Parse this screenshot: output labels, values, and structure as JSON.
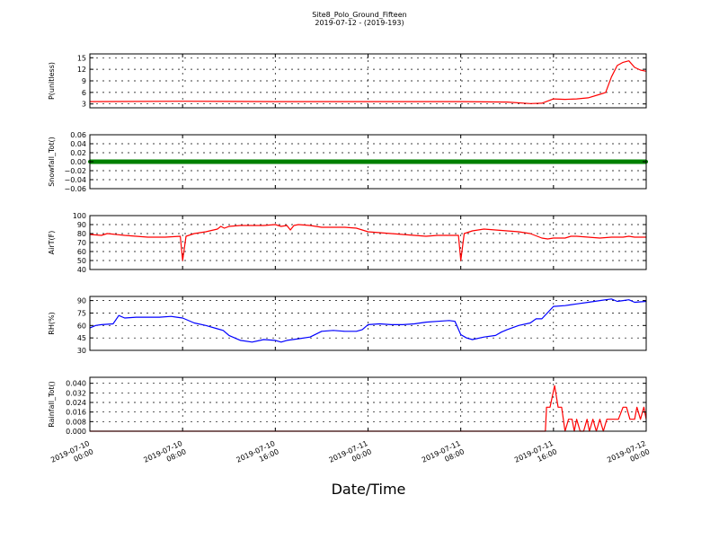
{
  "figure": {
    "title": "Site8_Polo_Ground_Fifteen",
    "subtitle": "2019-07-12 - (2019-193)",
    "xlabel": "Date/Time"
  },
  "chart_data": {
    "type": "line",
    "x_ticks": [
      [
        "2019-07-10",
        "00:00"
      ],
      [
        "2019-07-10",
        "08:00"
      ],
      [
        "2019-07-10",
        "16:00"
      ],
      [
        "2019-07-11",
        "00:00"
      ],
      [
        "2019-07-11",
        "08:00"
      ],
      [
        "2019-07-11",
        "16:00"
      ],
      [
        "2019-07-12",
        "00:00"
      ]
    ],
    "x_range_hours": [
      0,
      48
    ],
    "grid": true,
    "panels": [
      {
        "ylabel": "P(unitless)",
        "ylim": [
          2,
          16
        ],
        "yticks": [
          "3",
          "6",
          "9",
          "12",
          "15"
        ],
        "ytick_values": [
          3,
          6,
          9,
          12,
          15
        ],
        "color": "#ff0000",
        "series": [
          [
            0,
            3.6
          ],
          [
            8,
            3.7
          ],
          [
            16,
            3.6
          ],
          [
            24,
            3.6
          ],
          [
            32,
            3.6
          ],
          [
            36,
            3.5
          ],
          [
            38,
            3.1
          ],
          [
            39,
            3.2
          ],
          [
            40,
            4.3
          ],
          [
            41,
            4.2
          ],
          [
            42,
            4.3
          ],
          [
            43,
            4.6
          ],
          [
            44,
            5.5
          ],
          [
            44.5,
            6
          ],
          [
            45,
            10
          ],
          [
            45.5,
            13
          ],
          [
            46,
            13.8
          ],
          [
            46.5,
            14.2
          ],
          [
            47,
            12.5
          ],
          [
            47.5,
            11.8
          ],
          [
            48,
            11.5
          ]
        ]
      },
      {
        "ylabel": "Snowfall_Tot()",
        "ylim": [
          -0.06,
          0.06
        ],
        "yticks": [
          "−0.06",
          "−0.04",
          "−0.02",
          "0.00",
          "0.02",
          "0.04",
          "0.06"
        ],
        "ytick_values": [
          -0.06,
          -0.04,
          -0.02,
          0,
          0.02,
          0.04,
          0.06
        ],
        "color": "#008000",
        "marker": "dot",
        "series": [
          [
            0,
            0
          ],
          [
            48,
            0
          ]
        ]
      },
      {
        "ylabel": "AirT(F)",
        "ylim": [
          40,
          100
        ],
        "yticks": [
          "40",
          "50",
          "60",
          "70",
          "80",
          "90",
          "100"
        ],
        "ytick_values": [
          40,
          50,
          60,
          70,
          80,
          90,
          100
        ],
        "color": "#ff0000",
        "series": [
          [
            0,
            79
          ],
          [
            1,
            78
          ],
          [
            1.5,
            80
          ],
          [
            3,
            78
          ],
          [
            5,
            76
          ],
          [
            6.5,
            76
          ],
          [
            7.8,
            77
          ],
          [
            8,
            50
          ],
          [
            8.3,
            77
          ],
          [
            9,
            80
          ],
          [
            10,
            82
          ],
          [
            11,
            85
          ],
          [
            11.3,
            88
          ],
          [
            11.6,
            86
          ],
          [
            12,
            88
          ],
          [
            13,
            89
          ],
          [
            14,
            89
          ],
          [
            15,
            89
          ],
          [
            16,
            90
          ],
          [
            16.5,
            88
          ],
          [
            17,
            89
          ],
          [
            17.3,
            84
          ],
          [
            17.6,
            89
          ],
          [
            18,
            90
          ],
          [
            19,
            89
          ],
          [
            20,
            87
          ],
          [
            21,
            87
          ],
          [
            22,
            87
          ],
          [
            23,
            86
          ],
          [
            23.5,
            84
          ],
          [
            24,
            82
          ],
          [
            25,
            81
          ],
          [
            26,
            80
          ],
          [
            27,
            79
          ],
          [
            28,
            78
          ],
          [
            29,
            77
          ],
          [
            30,
            78
          ],
          [
            31.8,
            78
          ],
          [
            32,
            50
          ],
          [
            32.3,
            80
          ],
          [
            33,
            83
          ],
          [
            33.5,
            84
          ],
          [
            34,
            85
          ],
          [
            35,
            84
          ],
          [
            36,
            83
          ],
          [
            37,
            82
          ],
          [
            38,
            80
          ],
          [
            39,
            75
          ],
          [
            39.5,
            74
          ],
          [
            40,
            75
          ],
          [
            41,
            75
          ],
          [
            41.5,
            77
          ],
          [
            42,
            77
          ],
          [
            43,
            76
          ],
          [
            44,
            75
          ],
          [
            45,
            76
          ],
          [
            46,
            76
          ],
          [
            46.5,
            77
          ],
          [
            47,
            76
          ],
          [
            48,
            76
          ]
        ]
      },
      {
        "ylabel": "RH(%)",
        "ylim": [
          30,
          95
        ],
        "yticks": [
          "30",
          "45",
          "60",
          "75",
          "90"
        ],
        "ytick_values": [
          30,
          45,
          60,
          75,
          90
        ],
        "color": "#0000ff",
        "series": [
          [
            0,
            57
          ],
          [
            0.5,
            60
          ],
          [
            1,
            61
          ],
          [
            2,
            62
          ],
          [
            2.5,
            72
          ],
          [
            3,
            69
          ],
          [
            4,
            70
          ],
          [
            5,
            70
          ],
          [
            6,
            70
          ],
          [
            7,
            71
          ],
          [
            7.5,
            70
          ],
          [
            8,
            69
          ],
          [
            9,
            63
          ],
          [
            10,
            60
          ],
          [
            11,
            56
          ],
          [
            11.5,
            54
          ],
          [
            12,
            48
          ],
          [
            13,
            42
          ],
          [
            14,
            40
          ],
          [
            15,
            43
          ],
          [
            16,
            42
          ],
          [
            16.5,
            40
          ],
          [
            17,
            42
          ],
          [
            18,
            44
          ],
          [
            19,
            46
          ],
          [
            20,
            53
          ],
          [
            21,
            54
          ],
          [
            22,
            53
          ],
          [
            23,
            53
          ],
          [
            23.5,
            55
          ],
          [
            24,
            61
          ],
          [
            25,
            62
          ],
          [
            26,
            61
          ],
          [
            27,
            61
          ],
          [
            28,
            62
          ],
          [
            29,
            64
          ],
          [
            30,
            65
          ],
          [
            31,
            66
          ],
          [
            31.5,
            65
          ],
          [
            32,
            49
          ],
          [
            32.5,
            45
          ],
          [
            33,
            43
          ],
          [
            34,
            46
          ],
          [
            35,
            48
          ],
          [
            35.5,
            52
          ],
          [
            36,
            55
          ],
          [
            37,
            60
          ],
          [
            38,
            63
          ],
          [
            38.5,
            68
          ],
          [
            39,
            68
          ],
          [
            40,
            83
          ],
          [
            41,
            84
          ],
          [
            42,
            86
          ],
          [
            43,
            88
          ],
          [
            44,
            90
          ],
          [
            45,
            92
          ],
          [
            45.5,
            89
          ],
          [
            46,
            90
          ],
          [
            46.5,
            91
          ],
          [
            47,
            88
          ],
          [
            48,
            89
          ]
        ]
      },
      {
        "ylabel": "Rainfall_Tot()",
        "ylim": [
          0,
          0.045
        ],
        "yticks": [
          "0.000",
          "0.008",
          "0.016",
          "0.024",
          "0.032",
          "0.040"
        ],
        "ytick_values": [
          0,
          0.008,
          0.016,
          0.024,
          0.032,
          0.04
        ],
        "color": "#ff0000",
        "series": [
          [
            0,
            0
          ],
          [
            39.3,
            0
          ],
          [
            39.4,
            0.02
          ],
          [
            39.7,
            0.02
          ],
          [
            40.1,
            0.038
          ],
          [
            40.4,
            0.02
          ],
          [
            40.7,
            0.02
          ],
          [
            41,
            0
          ],
          [
            41.3,
            0.01
          ],
          [
            41.6,
            0.01
          ],
          [
            41.8,
            0
          ],
          [
            42,
            0.01
          ],
          [
            42.3,
            0
          ],
          [
            42.6,
            0
          ],
          [
            42.9,
            0.01
          ],
          [
            43.1,
            0
          ],
          [
            43.4,
            0.01
          ],
          [
            43.7,
            0
          ],
          [
            44,
            0.01
          ],
          [
            44.3,
            0
          ],
          [
            44.6,
            0.01
          ],
          [
            45,
            0.01
          ],
          [
            45.6,
            0.01
          ],
          [
            46,
            0.02
          ],
          [
            46.3,
            0.02
          ],
          [
            46.6,
            0.01
          ],
          [
            47,
            0.01
          ],
          [
            47.2,
            0.02
          ],
          [
            47.5,
            0.01
          ],
          [
            47.8,
            0.02
          ],
          [
            48,
            0.01
          ]
        ]
      }
    ]
  }
}
